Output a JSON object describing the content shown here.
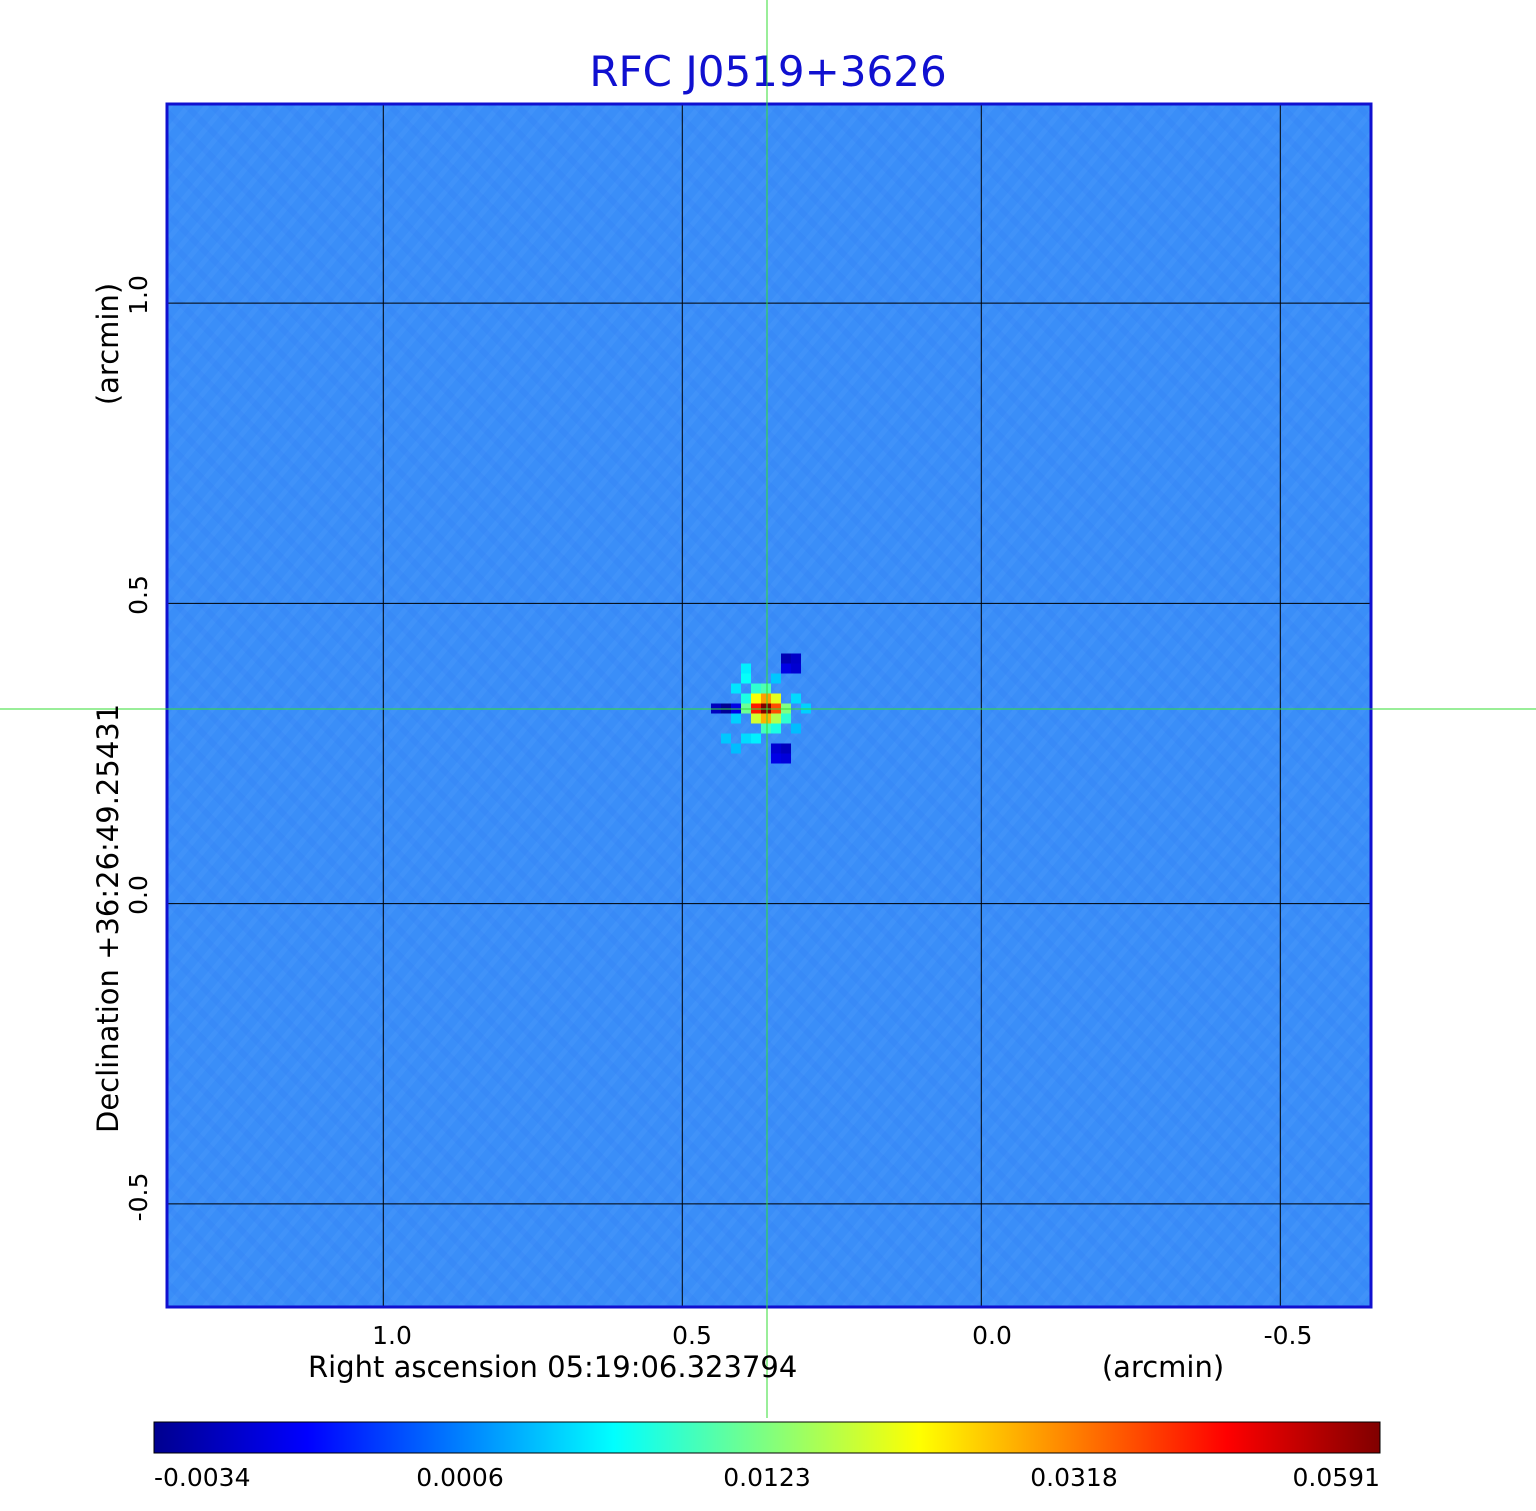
{
  "chart_data": {
    "type": "heatmap",
    "title": "RFC J0519+3626",
    "xlabel": "Right ascension  05:19:06.323794",
    "xunit": "(arcmin)",
    "ylabel": "Declination  +36:26:49.25431",
    "yunit": "(arcmin)",
    "x_ticks": [
      "1.0",
      "0.5",
      "0.0",
      "-0.5"
    ],
    "y_ticks": [
      "1.0",
      "0.5",
      "0.0",
      "-0.5"
    ],
    "x_range_arcmin": [
      1.36,
      -0.65
    ],
    "y_range_arcmin": [
      -0.67,
      1.33
    ],
    "grid": true,
    "crosshair_color": "#33dd33",
    "colorbar": {
      "colormap": "jet",
      "tick_labels": [
        "-0.0034",
        "0.0006",
        "0.0123",
        "0.0318",
        "0.0591"
      ],
      "min": -0.0034,
      "max": 0.0591
    },
    "peak": {
      "x_arcmin": 0.36,
      "y_arcmin": 0.325,
      "value": 0.0591
    },
    "background_value": 0.0006
  },
  "colors": {
    "title": "#1010d0",
    "frame": "#1010d0",
    "background_map": "#3a8ef8"
  }
}
